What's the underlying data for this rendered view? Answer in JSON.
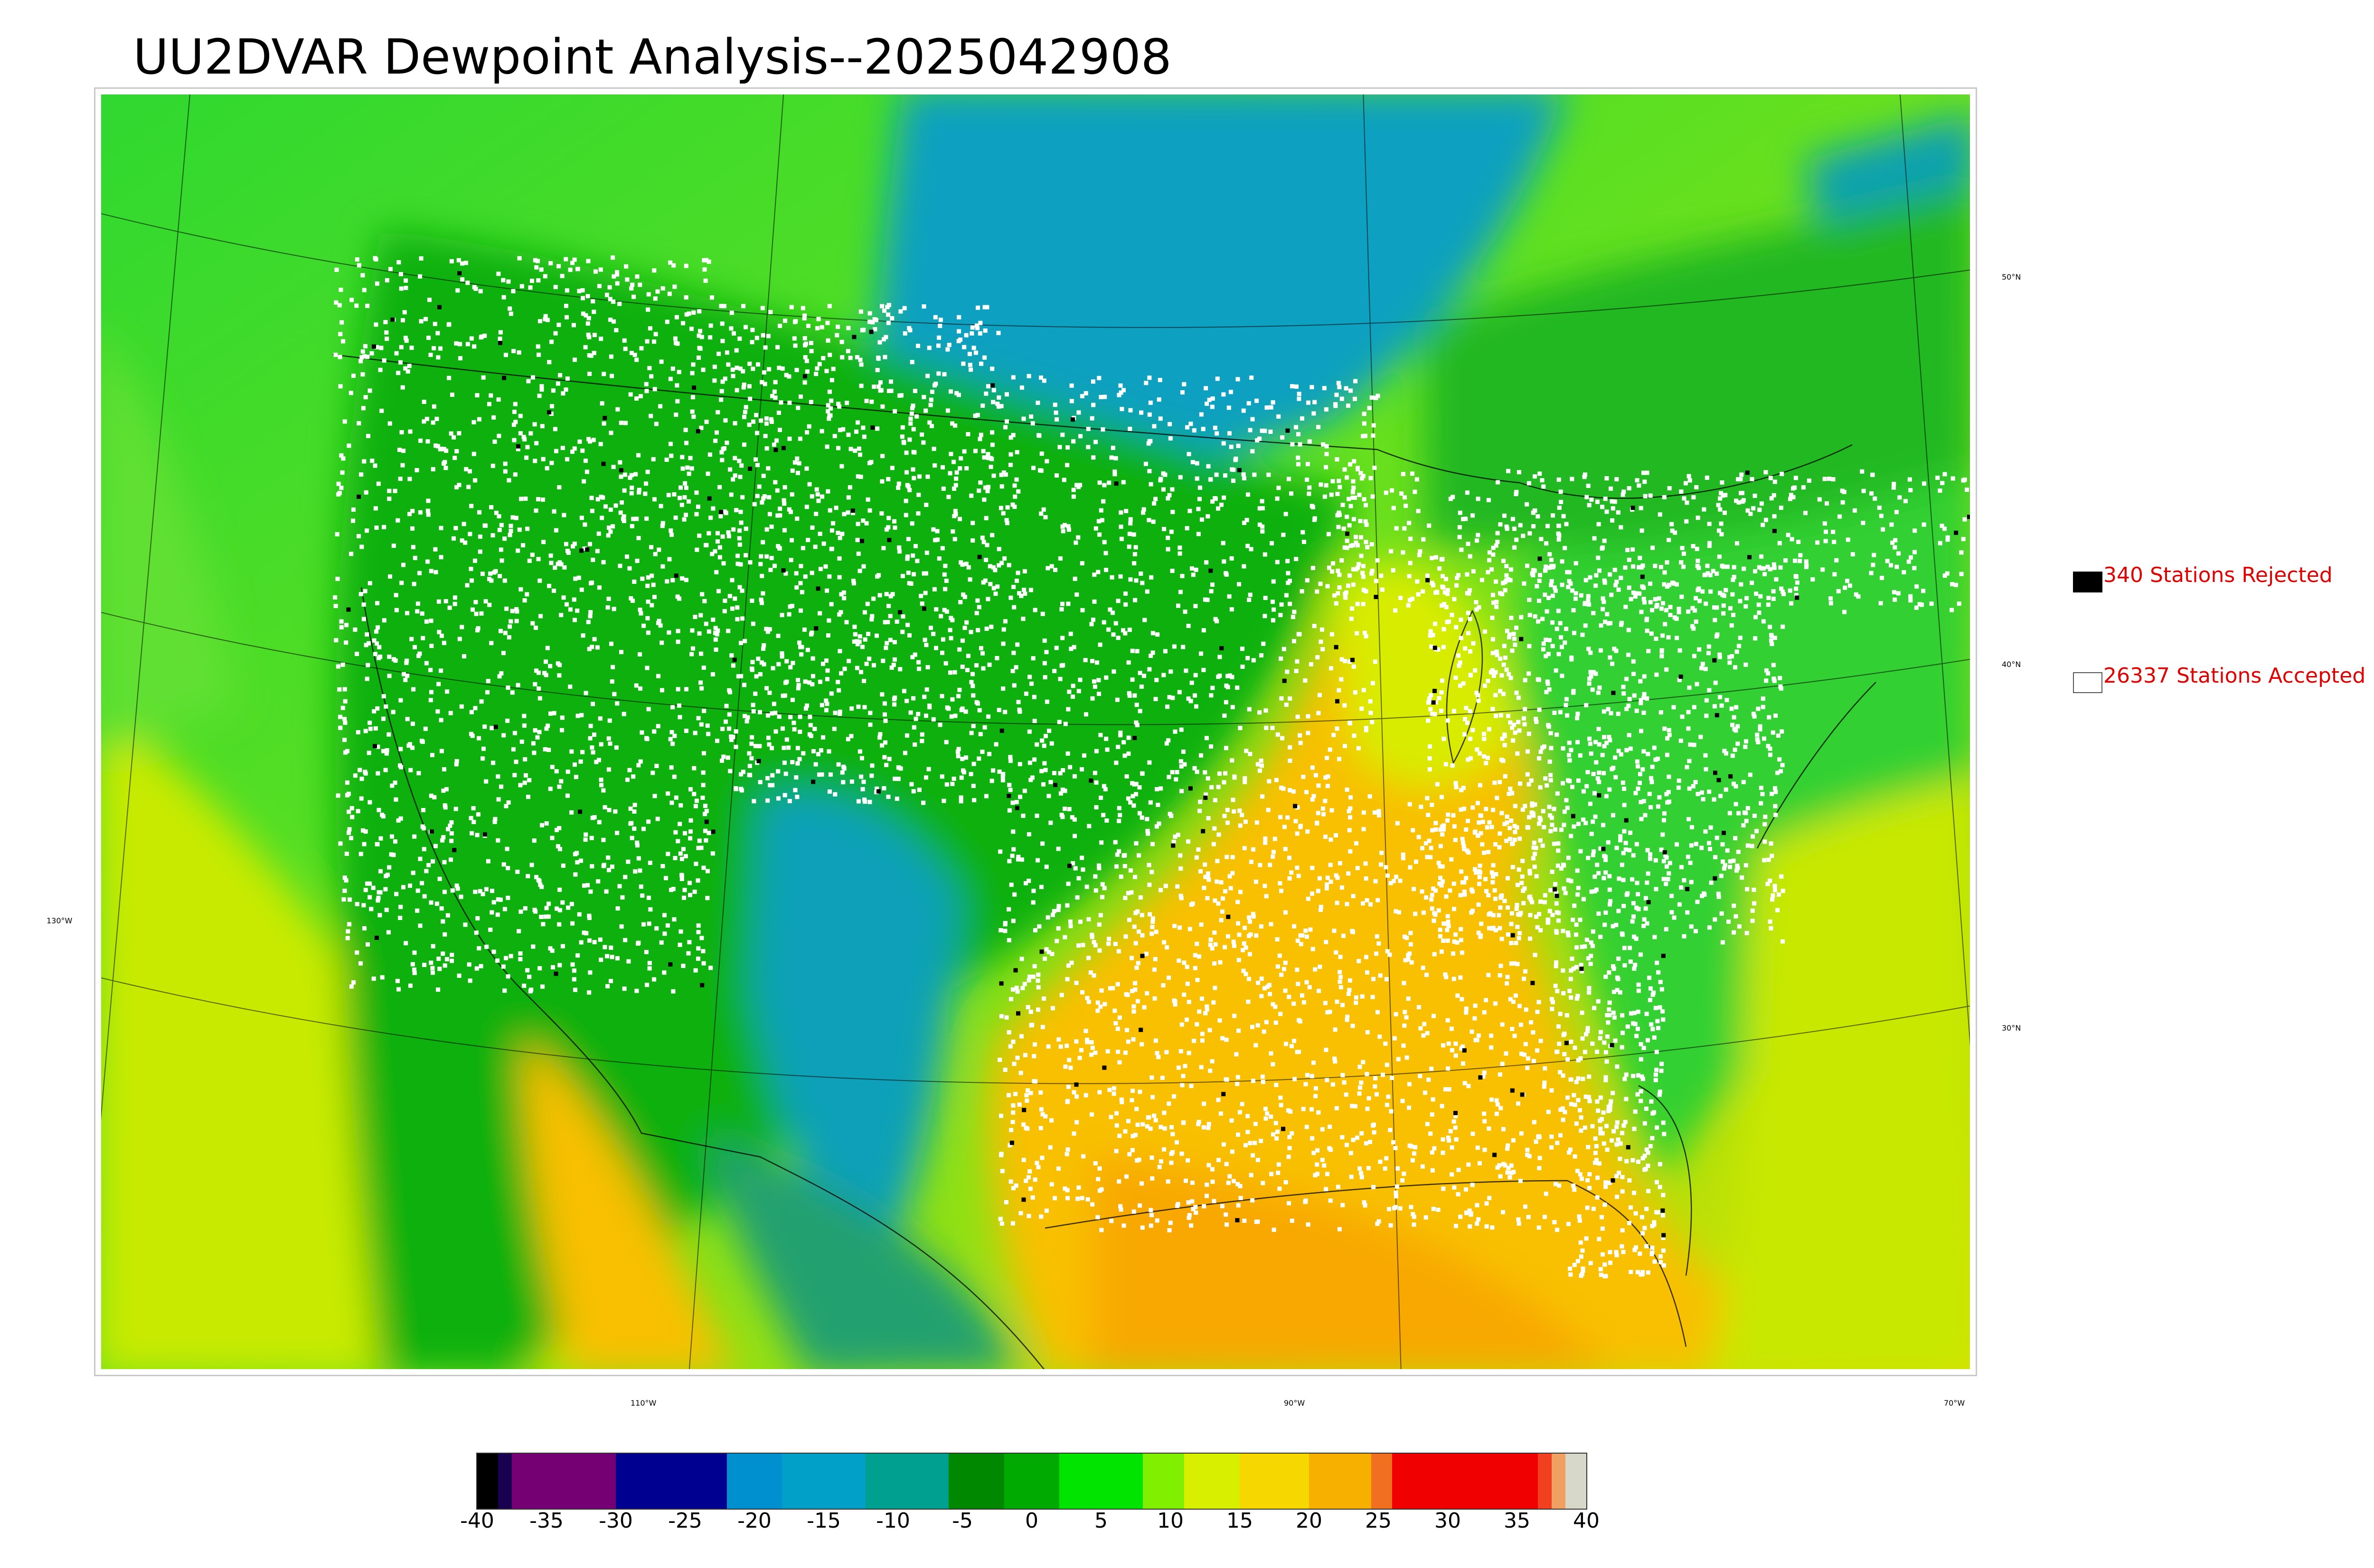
{
  "title": "UU2DVAR Dewpoint Analysis--2025042908",
  "lat_labels": [
    "50°N",
    "40°N",
    "30°N"
  ],
  "lon_labels": [
    "130°W",
    "110°W",
    "90°W",
    "70°W"
  ],
  "legend": {
    "rejected": {
      "count": 340,
      "label": "340 Stations Rejected",
      "color": "#000000"
    },
    "accepted": {
      "count": 26337,
      "label": "26337 Stations Accepted",
      "color": "#ffffff"
    }
  },
  "colorbar": {
    "min": -40,
    "max": 40,
    "ticks": [
      "-40",
      "-35",
      "-30",
      "-25",
      "-20",
      "-15",
      "-10",
      "-5",
      "0",
      "5",
      "10",
      "15",
      "20",
      "25",
      "30",
      "35",
      "40"
    ],
    "stops": [
      {
        "from": -40,
        "to": -38.5,
        "color": "#000000"
      },
      {
        "from": -38.5,
        "to": -37.5,
        "color": "#1a0050"
      },
      {
        "from": -37.5,
        "to": -30,
        "color": "#740074"
      },
      {
        "from": -30,
        "to": -22,
        "color": "#000090"
      },
      {
        "from": -22,
        "to": -18,
        "color": "#0090d0"
      },
      {
        "from": -18,
        "to": -12,
        "color": "#00a0c8"
      },
      {
        "from": -12,
        "to": -6,
        "color": "#00a090"
      },
      {
        "from": -6,
        "to": -2,
        "color": "#008800"
      },
      {
        "from": -2,
        "to": 2,
        "color": "#00aa00"
      },
      {
        "from": 2,
        "to": 8,
        "color": "#00e400"
      },
      {
        "from": 8,
        "to": 11,
        "color": "#80f000"
      },
      {
        "from": 11,
        "to": 15,
        "color": "#d8f000"
      },
      {
        "from": 15,
        "to": 20,
        "color": "#f6d800"
      },
      {
        "from": 20,
        "to": 24.5,
        "color": "#f8b000"
      },
      {
        "from": 24.5,
        "to": 26,
        "color": "#f07020"
      },
      {
        "from": 26,
        "to": 36.5,
        "color": "#f00000"
      },
      {
        "from": 36.5,
        "to": 37.5,
        "color": "#f04020"
      },
      {
        "from": 37.5,
        "to": 38.5,
        "color": "#f0a060"
      },
      {
        "from": 38.5,
        "to": 40,
        "color": "#d8d8c8"
      }
    ]
  }
}
